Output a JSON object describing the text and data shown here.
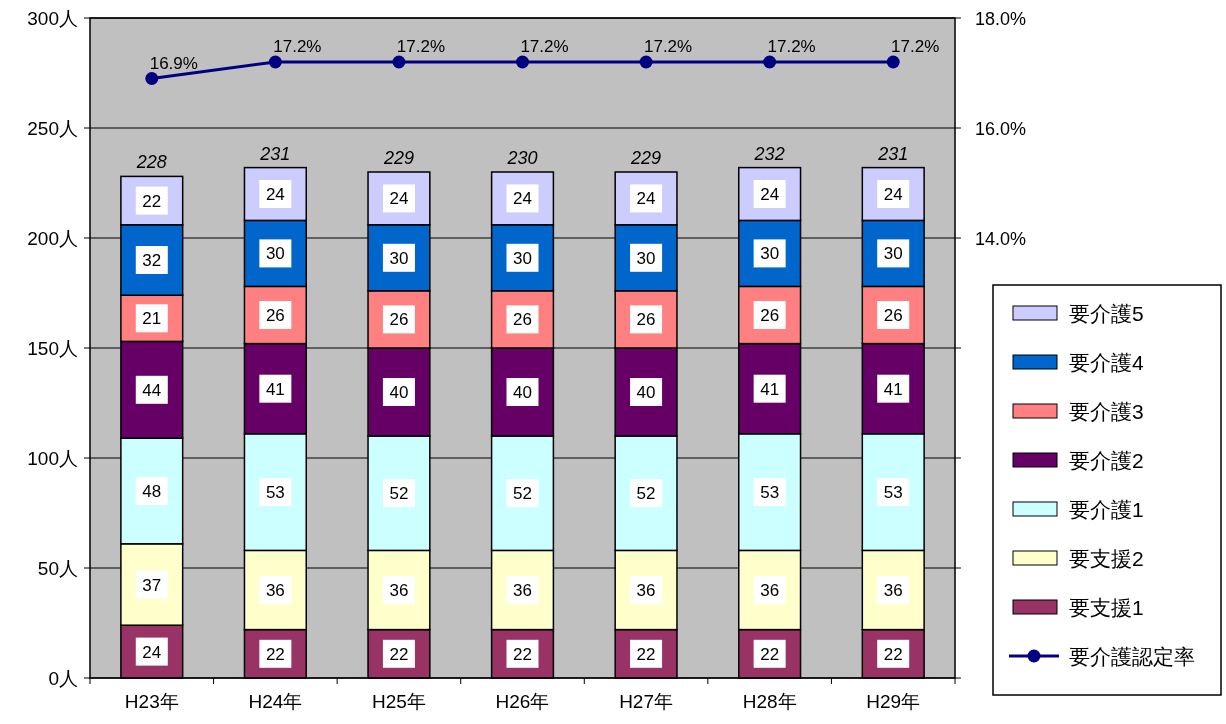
{
  "chart_data": {
    "type": "bar",
    "stacked": true,
    "categories": [
      "H23年",
      "H24年",
      "H25年",
      "H26年",
      "H27年",
      "H28年",
      "H29年"
    ],
    "series": [
      {
        "name": "要支援1",
        "color": "#993366",
        "values": [
          24,
          22,
          22,
          22,
          22,
          22,
          22
        ]
      },
      {
        "name": "要支援2",
        "color": "#ffffcc",
        "values": [
          37,
          36,
          36,
          36,
          36,
          36,
          36
        ]
      },
      {
        "name": "要介護1",
        "color": "#ccffff",
        "values": [
          48,
          53,
          52,
          52,
          52,
          53,
          53
        ]
      },
      {
        "name": "要介護2",
        "color": "#660066",
        "values": [
          44,
          41,
          40,
          40,
          40,
          41,
          41
        ]
      },
      {
        "name": "要介護3",
        "color": "#ff8080",
        "values": [
          21,
          26,
          26,
          26,
          26,
          26,
          26
        ]
      },
      {
        "name": "要介護4",
        "color": "#0066cc",
        "values": [
          32,
          30,
          30,
          30,
          30,
          30,
          30
        ]
      },
      {
        "name": "要介護5",
        "color": "#ccccff",
        "values": [
          22,
          24,
          24,
          24,
          24,
          24,
          24
        ]
      },
      {
        "name": "要介護認定率",
        "type": "line",
        "axis": "y2",
        "color": "#000080",
        "values": [
          16.9,
          17.2,
          17.2,
          17.2,
          17.2,
          17.2,
          17.2
        ],
        "value_labels": [
          "16.9%",
          "17.2%",
          "17.2%",
          "17.2%",
          "17.2%",
          "17.2%",
          "17.2%"
        ]
      }
    ],
    "totals": [
      "228",
      "231",
      "229",
      "230",
      "229",
      "232",
      "231"
    ],
    "data_labels": true,
    "ylim": [
      0,
      300
    ],
    "yticks": [
      {
        "value": 0,
        "label": "0人"
      },
      {
        "value": 50,
        "label": "50人"
      },
      {
        "value": 100,
        "label": "100人"
      },
      {
        "value": 150,
        "label": "150人"
      },
      {
        "value": 200,
        "label": "200人"
      },
      {
        "value": 250,
        "label": "250人"
      },
      {
        "value": 300,
        "label": "300人"
      }
    ],
    "y2lim": [
      6,
      18
    ],
    "y2ticks": [
      {
        "value": 6,
        "label": null
      },
      {
        "value": 8,
        "label": null
      },
      {
        "value": 10,
        "label": null
      },
      {
        "value": 12,
        "label": null
      },
      {
        "value": 14,
        "label": "14.0%"
      },
      {
        "value": 16,
        "label": "16.0%"
      },
      {
        "value": 18,
        "label": "18.0%"
      }
    ],
    "grid": "y",
    "legend": "right",
    "marker": "circle",
    "line_style": "solid"
  }
}
